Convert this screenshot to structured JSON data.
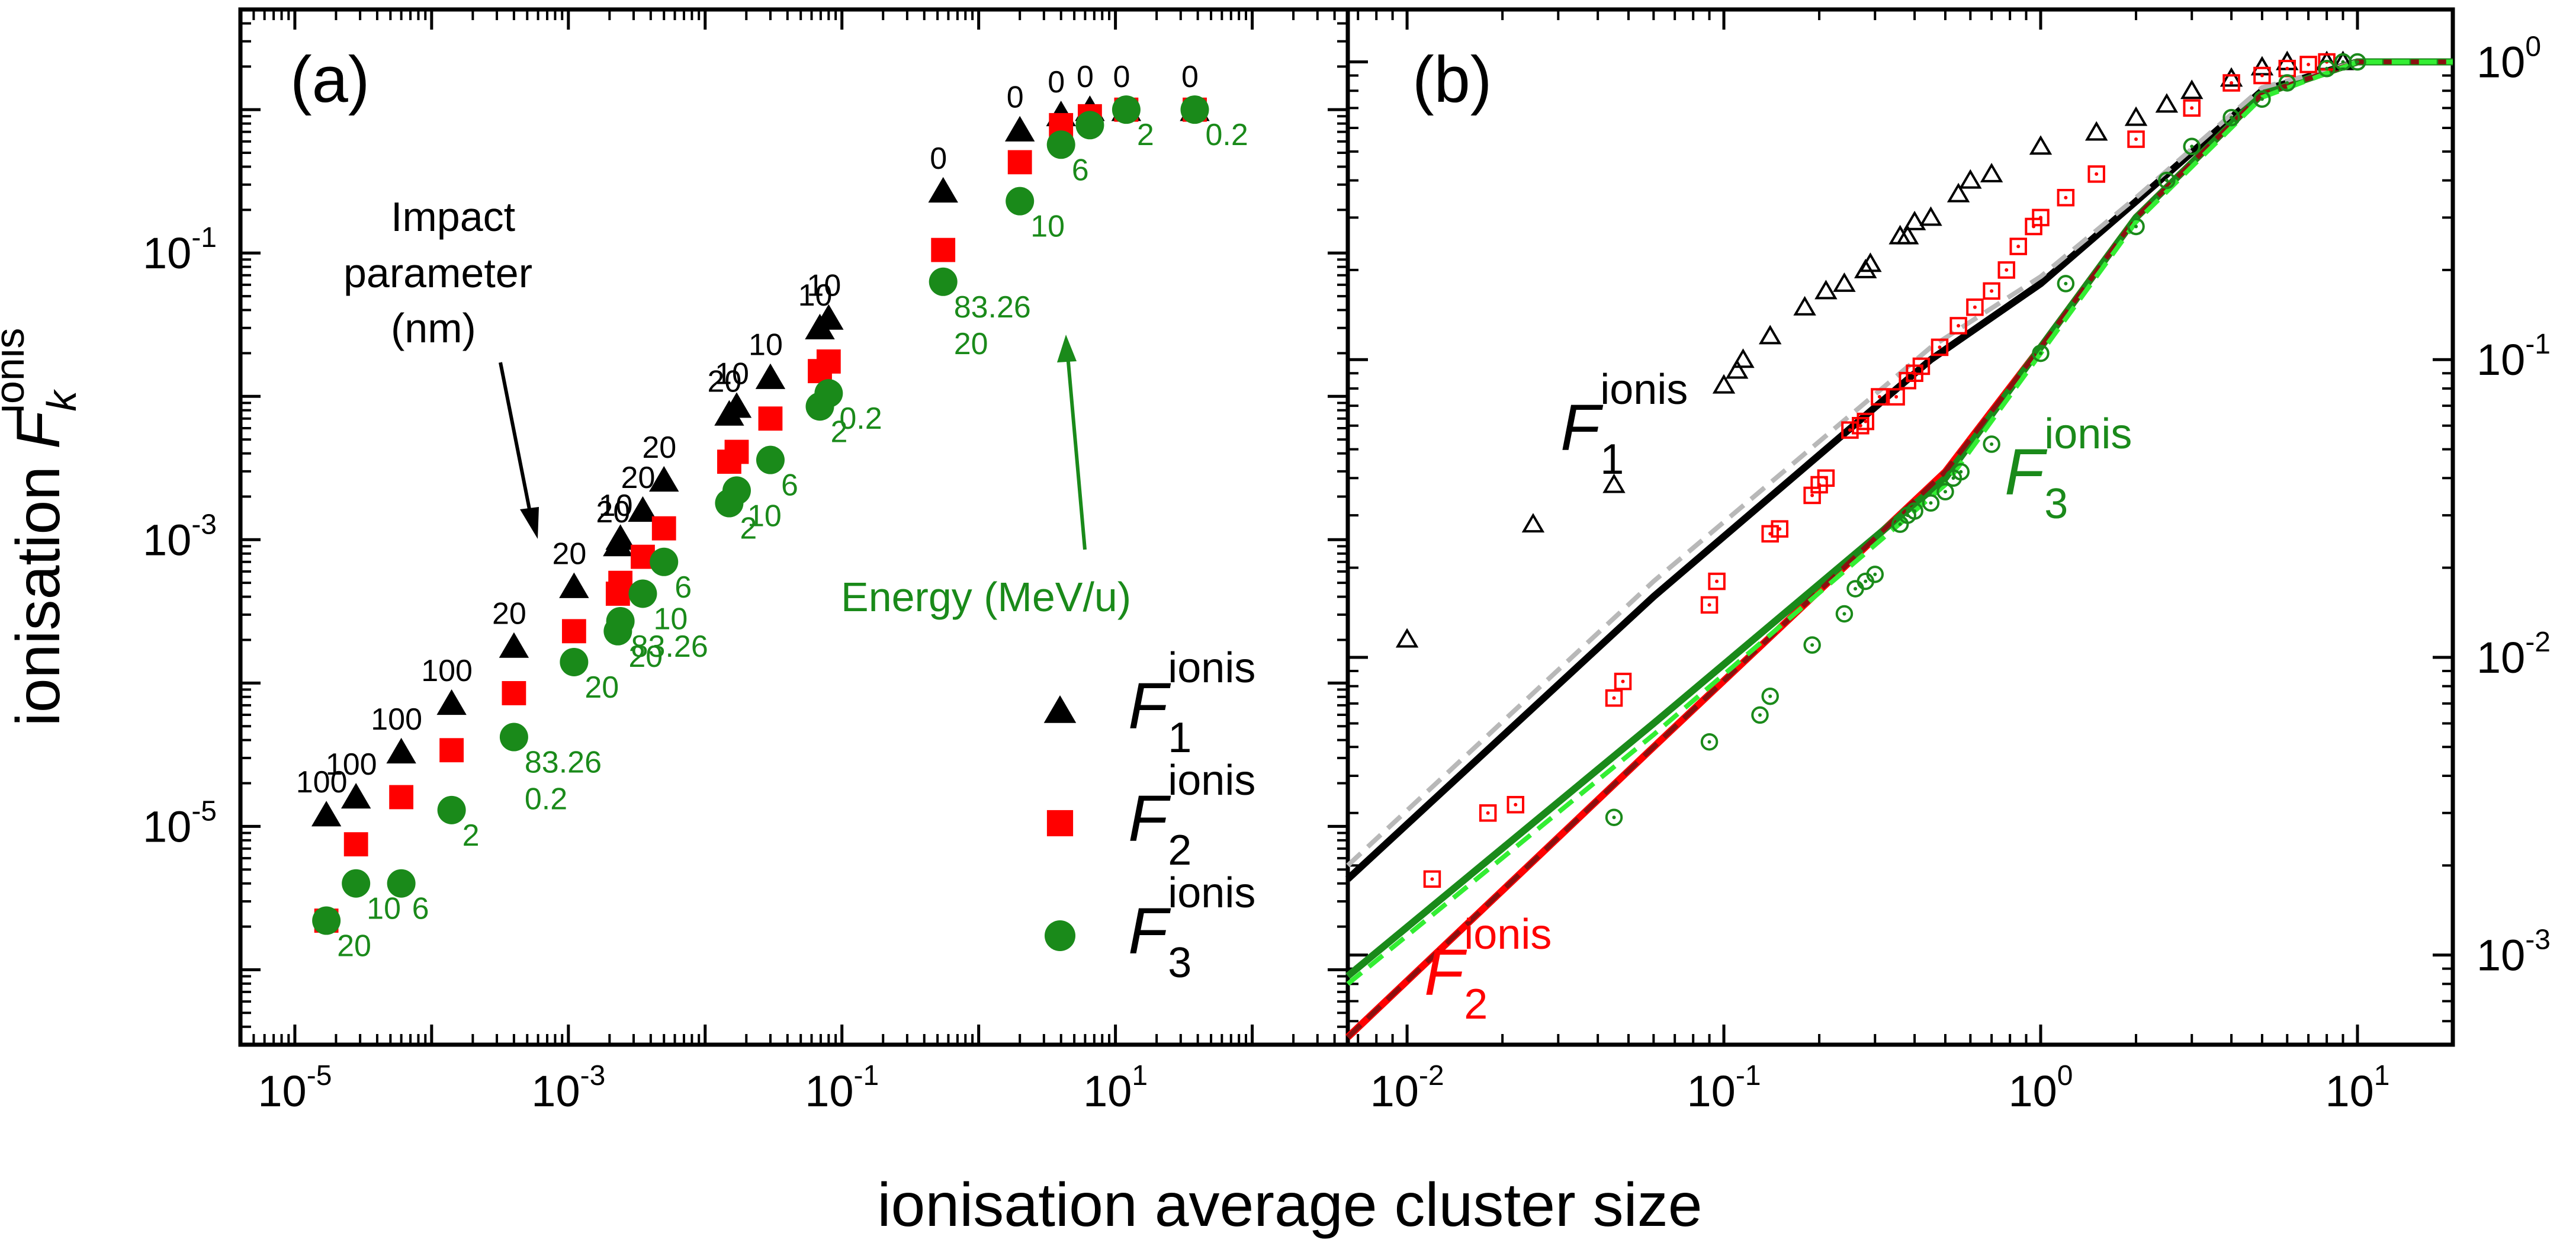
{
  "axis_title_x": "ionisation average cluster size",
  "axis_title_y_main": "ionisation ",
  "axis_title_y_F": "F",
  "axis_title_y_sub": "k",
  "axis_title_y_sup": "ionis",
  "colors": {
    "F1": "#000000",
    "F2": "#ff0000",
    "F3": "#1a8a1a",
    "F1_fit": "#b8b8b8",
    "F2_fit": "#8b1010",
    "F3_fit": "#33ee33",
    "energy": "#1a8a1a"
  },
  "chart_data": [
    {
      "panel": "(a)",
      "type": "scatter",
      "xscale": "log",
      "yscale": "log",
      "xlim": [
        4e-06,
        500
      ],
      "ylim": [
        3e-07,
        5
      ],
      "x_ticks": [
        {
          "base": "10",
          "exp": "-5",
          "value": 1e-05
        },
        {
          "base": "10",
          "exp": "-3",
          "value": 0.001
        },
        {
          "base": "10",
          "exp": "-1",
          "value": 0.1
        },
        {
          "base": "10",
          "exp": "1",
          "value": 10
        }
      ],
      "y_ticks": [
        {
          "base": "10",
          "exp": "-5",
          "value": 1e-05
        },
        {
          "base": "10",
          "exp": "-3",
          "value": 0.001
        },
        {
          "base": "10",
          "exp": "-1",
          "value": 0.1
        }
      ],
      "x": [
        1.7e-05,
        2.8e-05,
        6e-05,
        0.00014,
        0.0004,
        0.0011,
        0.0023,
        0.0024,
        0.0035,
        0.005,
        0.015,
        0.017,
        0.03,
        0.069,
        0.08,
        0.55,
        2.0,
        4.0,
        6.5,
        12.0,
        38.0
      ],
      "series": [
        {
          "name": "F1",
          "marker": "triangle",
          "values": [
            1.2e-05,
            1.6e-05,
            3.3e-05,
            7.2e-05,
            0.00018,
            0.00047,
            0.00092,
            0.00102,
            0.0016,
            0.0026,
            0.0075,
            0.0085,
            0.0135,
            0.03,
            0.035,
            0.27,
            0.72,
            0.92,
            1.0,
            1.0,
            1.0
          ]
        },
        {
          "name": "F2",
          "marker": "square",
          "values": [
            2.2e-06,
            7.5e-06,
            1.6e-05,
            3.4e-05,
            8.5e-05,
            0.00023,
            0.00042,
            0.0005,
            0.00076,
            0.0012,
            0.0035,
            0.0041,
            0.007,
            0.015,
            0.0175,
            0.105,
            0.43,
            0.78,
            0.9,
            1.0,
            1.0
          ]
        },
        {
          "name": "F3",
          "marker": "circle",
          "values": [
            2.2e-06,
            4e-06,
            4e-06,
            1.3e-05,
            4.2e-05,
            0.00014,
            0.00023,
            0.00027,
            0.00042,
            0.0007,
            0.0018,
            0.0022,
            0.0036,
            0.0085,
            0.0105,
            0.063,
            0.23,
            0.57,
            0.78,
            1.0,
            1.0
          ]
        }
      ],
      "impact_parameter_labels": [
        "100",
        "100",
        "100",
        "100",
        "20",
        "20",
        "20",
        "10",
        "20",
        "20",
        "20",
        "10",
        "10",
        "10",
        "10",
        "0",
        "0",
        "0",
        "0",
        "0",
        "0"
      ],
      "energy_labels": [
        {
          "text": "20",
          "point": 0
        },
        {
          "text": "10",
          "point": 1
        },
        {
          "text": "6",
          "point": 2
        },
        {
          "text": "2",
          "point": 3
        },
        {
          "text": "83.26",
          "point": 4
        },
        {
          "text": "0.2",
          "point": 4
        },
        {
          "text": "20",
          "point": 5
        },
        {
          "text": "20",
          "point": 6
        },
        {
          "text": "83.26",
          "point": 7
        },
        {
          "text": "10",
          "point": 8
        },
        {
          "text": "6",
          "point": 9
        },
        {
          "text": "2",
          "point": 10
        },
        {
          "text": "10",
          "point": 11
        },
        {
          "text": "6",
          "point": 12
        },
        {
          "text": "2",
          "point": 13
        },
        {
          "text": "0.2",
          "point": 14
        },
        {
          "text": "83.26",
          "point": 15
        },
        {
          "text": "20",
          "point": 15
        },
        {
          "text": "10",
          "point": 16
        },
        {
          "text": "6",
          "point": 17
        },
        {
          "text": "2",
          "point": 19
        },
        {
          "text": "0.2",
          "point": 20
        }
      ],
      "annotation_impact": [
        "Impact",
        "parameter",
        "(nm)"
      ],
      "annotation_energy": "Energy (MeV/u)",
      "legend": [
        {
          "F": "F",
          "sub": "1",
          "sup": "ionis",
          "marker": "triangle",
          "series": "F1"
        },
        {
          "F": "F",
          "sub": "2",
          "sup": "ionis",
          "marker": "square",
          "series": "F2"
        },
        {
          "F": "F",
          "sub": "3",
          "sup": "ionis",
          "marker": "circle",
          "series": "F3"
        }
      ]
    },
    {
      "panel": "(b)",
      "type": "line+scatter",
      "xscale": "log",
      "yscale": "log",
      "xlim": [
        0.0065,
        20
      ],
      "ylim": [
        0.0005,
        1.5
      ],
      "x_ticks": [
        {
          "base": "10",
          "exp": "-2",
          "value": 0.01
        },
        {
          "base": "10",
          "exp": "-1",
          "value": 0.1
        },
        {
          "base": "10",
          "exp": "0",
          "value": 1
        },
        {
          "base": "10",
          "exp": "1",
          "value": 10
        }
      ],
      "y_ticks": [
        {
          "base": "10",
          "exp": "-3",
          "value": 0.001
        },
        {
          "base": "10",
          "exp": "-2",
          "value": 0.01
        },
        {
          "base": "10",
          "exp": "-1",
          "value": 0.1
        },
        {
          "base": "10",
          "exp": "0",
          "value": 1
        }
      ],
      "model_lines": [
        {
          "name": "F1",
          "x": [
            0.0065,
            0.06,
            0.45,
            1.0,
            2.0,
            5.0,
            10.0,
            20.0
          ],
          "values": [
            0.0018,
            0.016,
            0.1,
            0.18,
            0.34,
            0.8,
            1.0,
            1.0
          ]
        },
        {
          "name": "F2",
          "x": [
            0.0065,
            0.06,
            0.5,
            1.0,
            2.0,
            5.0,
            10.0,
            20.0
          ],
          "values": [
            0.00053,
            0.005,
            0.042,
            0.11,
            0.3,
            0.78,
            1.0,
            1.0
          ]
        },
        {
          "name": "F3",
          "x": [
            0.0065,
            0.06,
            0.5,
            1.0,
            2.0,
            5.0,
            10.0,
            20.0
          ],
          "values": [
            0.00085,
            0.006,
            0.04,
            0.11,
            0.3,
            0.78,
            1.0,
            1.0
          ]
        }
      ],
      "fit_lines": [
        {
          "name": "F1",
          "x": [
            0.0065,
            0.06,
            0.45,
            1.0,
            2.0,
            5.0,
            10.0,
            20.0
          ],
          "values": [
            0.002,
            0.018,
            0.11,
            0.19,
            0.35,
            0.82,
            1.0,
            1.0
          ]
        },
        {
          "name": "F2",
          "x": [
            0.0065,
            0.06,
            0.5,
            1.0,
            2.0,
            5.0,
            10.0,
            20.0
          ],
          "values": [
            0.00053,
            0.005,
            0.042,
            0.11,
            0.3,
            0.78,
            1.0,
            1.0
          ]
        },
        {
          "name": "F3",
          "x": [
            0.0065,
            0.06,
            0.5,
            1.0,
            2.0,
            5.0,
            10.0,
            20.0
          ],
          "values": [
            0.0008,
            0.0055,
            0.038,
            0.105,
            0.29,
            0.76,
            1.0,
            1.0
          ]
        }
      ],
      "points": [
        {
          "name": "F1",
          "marker": "open-triangle",
          "x": [
            0.01,
            0.025,
            0.045,
            0.1,
            0.11,
            0.115,
            0.14,
            0.18,
            0.21,
            0.24,
            0.28,
            0.29,
            0.36,
            0.38,
            0.4,
            0.45,
            0.55,
            0.6,
            0.7,
            1.0,
            1.5,
            2.0,
            2.5,
            3.0,
            4.0,
            5.0,
            6.0,
            8.0,
            9.0
          ],
          "values": [
            0.0115,
            0.028,
            0.038,
            0.082,
            0.092,
            0.1,
            0.12,
            0.15,
            0.17,
            0.18,
            0.2,
            0.21,
            0.26,
            0.26,
            0.29,
            0.3,
            0.36,
            0.4,
            0.42,
            0.52,
            0.58,
            0.65,
            0.72,
            0.8,
            0.88,
            0.96,
            1.0,
            1.0,
            1.0
          ]
        },
        {
          "name": "F2",
          "marker": "open-square",
          "x": [
            0.012,
            0.018,
            0.022,
            0.045,
            0.048,
            0.09,
            0.095,
            0.14,
            0.15,
            0.19,
            0.2,
            0.21,
            0.25,
            0.27,
            0.28,
            0.31,
            0.35,
            0.38,
            0.4,
            0.42,
            0.48,
            0.55,
            0.62,
            0.7,
            0.78,
            0.85,
            0.95,
            1.0,
            1.2,
            1.5,
            2.0,
            3.0,
            4.0,
            5.0,
            6.0,
            7.0,
            8.0
          ],
          "values": [
            0.0018,
            0.003,
            0.0032,
            0.0073,
            0.0083,
            0.015,
            0.018,
            0.026,
            0.027,
            0.035,
            0.038,
            0.04,
            0.058,
            0.06,
            0.062,
            0.075,
            0.075,
            0.085,
            0.09,
            0.095,
            0.11,
            0.13,
            0.15,
            0.17,
            0.2,
            0.24,
            0.28,
            0.3,
            0.35,
            0.42,
            0.55,
            0.7,
            0.85,
            0.9,
            0.95,
            0.98,
            1.0
          ]
        },
        {
          "name": "F3",
          "marker": "open-circle",
          "x": [
            0.045,
            0.09,
            0.13,
            0.14,
            0.19,
            0.24,
            0.26,
            0.28,
            0.3,
            0.36,
            0.38,
            0.4,
            0.45,
            0.5,
            0.53,
            0.56,
            0.7,
            1.0,
            1.2,
            2.0,
            2.5,
            3.0,
            4.0,
            5.0,
            6.0,
            8.0,
            9.0,
            10.0
          ],
          "values": [
            0.0029,
            0.0052,
            0.0064,
            0.0074,
            0.011,
            0.014,
            0.017,
            0.018,
            0.019,
            0.028,
            0.03,
            0.031,
            0.033,
            0.036,
            0.04,
            0.042,
            0.052,
            0.105,
            0.18,
            0.28,
            0.4,
            0.52,
            0.65,
            0.75,
            0.85,
            0.95,
            1.0,
            1.0
          ]
        }
      ],
      "curve_labels": [
        {
          "F": "F",
          "sub": "1",
          "sup": "ionis",
          "series": "F1"
        },
        {
          "F": "F",
          "sub": "2",
          "sup": "ionis",
          "series": "F2"
        },
        {
          "F": "F",
          "sub": "3",
          "sup": "ionis",
          "series": "F3"
        }
      ]
    }
  ]
}
